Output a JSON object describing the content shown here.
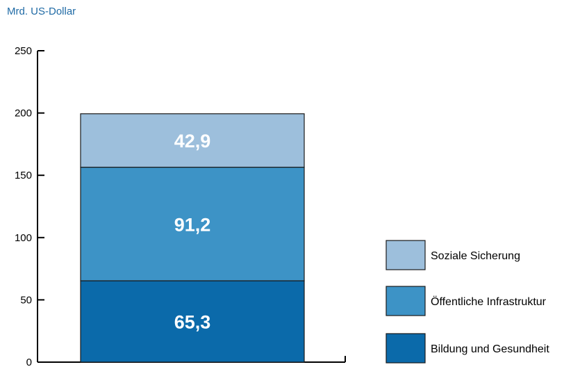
{
  "unit_label": "Mrd. US-Dollar",
  "chart_data": {
    "type": "bar",
    "stacked": true,
    "categories": [
      ""
    ],
    "ylim": [
      0,
      250
    ],
    "yticks": [
      0,
      50,
      100,
      150,
      200,
      250
    ],
    "ytick_labels": [
      "0",
      "50",
      "100",
      "150",
      "200",
      "250"
    ],
    "ylabel": "Mrd. US-Dollar",
    "legend_placement": "right",
    "series": [
      {
        "name": "Bildung und Gesundheit",
        "values": [
          65.3
        ],
        "label": "65,3",
        "color": "#0b6aaa"
      },
      {
        "name": "Öffentliche Infrastruktur",
        "values": [
          91.2
        ],
        "label": "91,2",
        "color": "#3d93c6"
      },
      {
        "name": "Soziale Sicherung",
        "values": [
          42.9
        ],
        "label": "42,9",
        "color": "#9dbfdc"
      }
    ]
  }
}
